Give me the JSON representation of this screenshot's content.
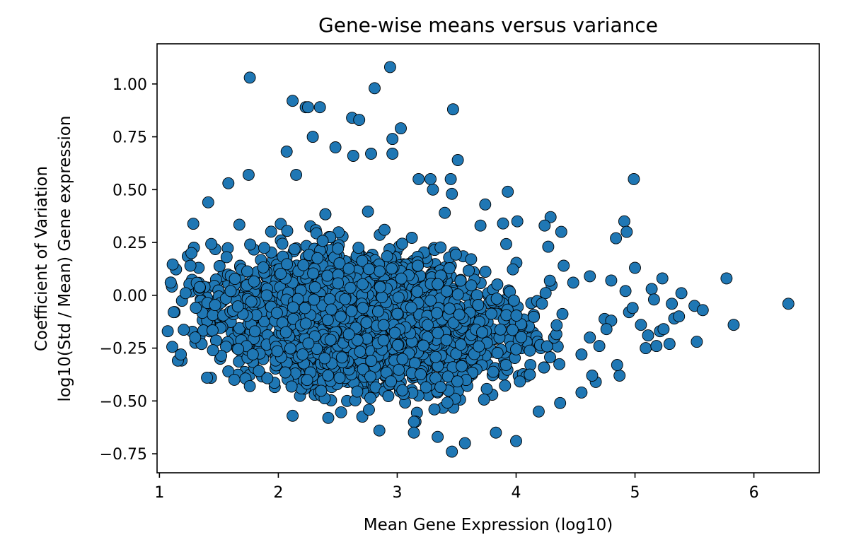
{
  "chart_data": {
    "type": "scatter",
    "title": "Gene-wise means versus variance",
    "xlabel": "Mean Gene Expression (log10)",
    "ylabel": [
      "Coefficient of Variation",
      "log10(Std / Mean) Gene expression"
    ],
    "xlim": [
      0.98,
      6.55
    ],
    "ylim": [
      -0.84,
      1.19
    ],
    "x_ticks": [
      1,
      2,
      3,
      4,
      5,
      6
    ],
    "x_tick_labels": [
      "1",
      "2",
      "3",
      "4",
      "5",
      "6"
    ],
    "y_ticks": [
      -0.75,
      -0.5,
      -0.25,
      0.0,
      0.25,
      0.5,
      0.75,
      1.0
    ],
    "y_tick_labels": [
      "−0.75",
      "−0.50",
      "−0.25",
      "0.00",
      "0.25",
      "0.50",
      "0.75",
      "1.00"
    ],
    "grid": false,
    "legend": "none",
    "marker_color": "#1f77b4",
    "marker_edge_color": "#000000",
    "outliers": [
      {
        "x": 1.07,
        "y": -0.17
      },
      {
        "x": 1.18,
        "y": -0.28
      },
      {
        "x": 1.12,
        "y": -0.08
      },
      {
        "x": 1.41,
        "y": 0.44
      },
      {
        "x": 1.4,
        "y": -0.39
      },
      {
        "x": 1.76,
        "y": 1.03
      },
      {
        "x": 2.12,
        "y": 0.92
      },
      {
        "x": 2.23,
        "y": 0.89
      },
      {
        "x": 2.35,
        "y": 0.89
      },
      {
        "x": 2.25,
        "y": 0.89
      },
      {
        "x": 2.29,
        "y": 0.75
      },
      {
        "x": 2.48,
        "y": 0.7
      },
      {
        "x": 2.62,
        "y": 0.84
      },
      {
        "x": 2.68,
        "y": 0.83
      },
      {
        "x": 2.81,
        "y": 0.98
      },
      {
        "x": 2.94,
        "y": 1.08
      },
      {
        "x": 3.03,
        "y": 0.79
      },
      {
        "x": 2.96,
        "y": 0.74
      },
      {
        "x": 3.47,
        "y": 0.88
      },
      {
        "x": 3.51,
        "y": 0.64
      },
      {
        "x": 2.63,
        "y": 0.66
      },
      {
        "x": 2.96,
        "y": 0.67
      },
      {
        "x": 2.78,
        "y": 0.67
      },
      {
        "x": 3.46,
        "y": -0.74
      },
      {
        "x": 3.57,
        "y": -0.7
      },
      {
        "x": 4.0,
        "y": -0.69
      },
      {
        "x": 3.83,
        "y": -0.65
      },
      {
        "x": 3.34,
        "y": -0.67
      },
      {
        "x": 4.19,
        "y": -0.55
      },
      {
        "x": 4.55,
        "y": -0.46
      },
      {
        "x": 4.67,
        "y": -0.41
      },
      {
        "x": 4.87,
        "y": -0.38
      },
      {
        "x": 4.85,
        "y": -0.33
      },
      {
        "x": 4.99,
        "y": 0.55
      },
      {
        "x": 4.91,
        "y": 0.35
      },
      {
        "x": 4.84,
        "y": 0.27
      },
      {
        "x": 4.93,
        "y": 0.3
      },
      {
        "x": 5.0,
        "y": 0.13
      },
      {
        "x": 4.8,
        "y": 0.07
      },
      {
        "x": 5.23,
        "y": 0.08
      },
      {
        "x": 5.14,
        "y": 0.03
      },
      {
        "x": 5.39,
        "y": 0.01
      },
      {
        "x": 5.16,
        "y": -0.02
      },
      {
        "x": 5.31,
        "y": -0.04
      },
      {
        "x": 5.5,
        "y": -0.05
      },
      {
        "x": 5.57,
        "y": -0.07
      },
      {
        "x": 5.33,
        "y": -0.11
      },
      {
        "x": 5.37,
        "y": -0.1
      },
      {
        "x": 5.05,
        "y": -0.14
      },
      {
        "x": 5.11,
        "y": -0.19
      },
      {
        "x": 5.21,
        "y": -0.17
      },
      {
        "x": 5.24,
        "y": -0.16
      },
      {
        "x": 5.29,
        "y": -0.23
      },
      {
        "x": 5.09,
        "y": -0.25
      },
      {
        "x": 5.18,
        "y": -0.24
      },
      {
        "x": 5.52,
        "y": -0.22
      },
      {
        "x": 5.77,
        "y": 0.08
      },
      {
        "x": 5.83,
        "y": -0.14
      },
      {
        "x": 6.29,
        "y": -0.04
      },
      {
        "x": 4.92,
        "y": 0.02
      },
      {
        "x": 4.95,
        "y": -0.08
      },
      {
        "x": 4.98,
        "y": -0.06
      },
      {
        "x": 4.8,
        "y": -0.12
      },
      {
        "x": 4.76,
        "y": -0.16
      },
      {
        "x": 4.62,
        "y": -0.2
      },
      {
        "x": 4.7,
        "y": -0.24
      },
      {
        "x": 4.55,
        "y": -0.28
      },
      {
        "x": 4.38,
        "y": 0.3
      },
      {
        "x": 4.29,
        "y": 0.37
      },
      {
        "x": 4.24,
        "y": 0.33
      },
      {
        "x": 4.27,
        "y": 0.23
      },
      {
        "x": 3.93,
        "y": 0.49
      },
      {
        "x": 3.74,
        "y": 0.43
      },
      {
        "x": 3.89,
        "y": 0.34
      },
      {
        "x": 4.01,
        "y": 0.35
      },
      {
        "x": 3.7,
        "y": 0.33
      },
      {
        "x": 3.45,
        "y": 0.55
      },
      {
        "x": 3.46,
        "y": 0.48
      },
      {
        "x": 3.3,
        "y": 0.5
      },
      {
        "x": 3.18,
        "y": 0.55
      },
      {
        "x": 3.28,
        "y": 0.55
      },
      {
        "x": 3.4,
        "y": 0.39
      },
      {
        "x": 1.33,
        "y": 0.13
      },
      {
        "x": 1.26,
        "y": 0.14
      },
      {
        "x": 1.22,
        "y": 0.01
      },
      {
        "x": 1.3,
        "y": -0.2
      },
      {
        "x": 1.45,
        "y": -0.26
      },
      {
        "x": 1.63,
        "y": -0.4
      },
      {
        "x": 1.76,
        "y": -0.43
      },
      {
        "x": 1.58,
        "y": 0.53
      },
      {
        "x": 1.75,
        "y": 0.57
      },
      {
        "x": 2.07,
        "y": 0.68
      },
      {
        "x": 2.15,
        "y": 0.57
      },
      {
        "x": 2.12,
        "y": -0.57
      },
      {
        "x": 2.42,
        "y": -0.58
      },
      {
        "x": 2.85,
        "y": -0.64
      },
      {
        "x": 3.14,
        "y": -0.65
      },
      {
        "x": 4.37,
        "y": -0.51
      },
      {
        "x": 4.64,
        "y": -0.38
      },
      {
        "x": 4.62,
        "y": 0.09
      },
      {
        "x": 4.48,
        "y": 0.06
      },
      {
        "x": 4.4,
        "y": 0.14
      }
    ]
  }
}
